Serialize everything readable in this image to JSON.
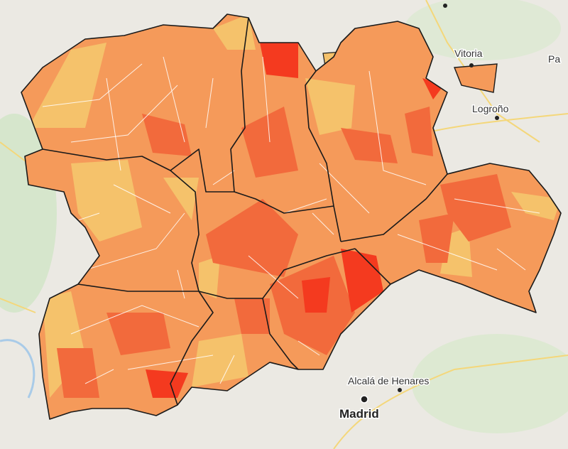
{
  "map": {
    "labels": [
      {
        "text": "Vitoria"
      },
      {
        "text": "Pa"
      },
      {
        "text": "Logroño"
      },
      {
        "text": "Alcalá de Henares"
      },
      {
        "text": "Madrid"
      }
    ]
  }
}
